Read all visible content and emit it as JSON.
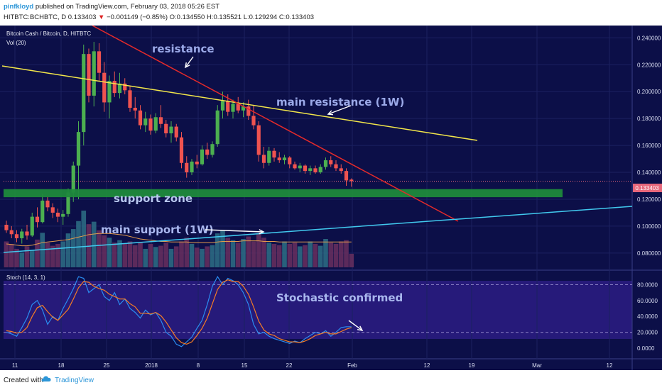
{
  "header": {
    "username": "pinfkloyd",
    "published_text": "published on TradingView.com, February 03, 2018 05:26 EST",
    "symbol": "HITBTC:BCHBTC, D",
    "last": "0.133403",
    "change_arrow": "▼",
    "change": "−0.001149 (−0.85%)",
    "ohlc": "O:0.134550 H:0.135521 L:0.129294 C:0.133403"
  },
  "chart_title": "Bitcoin Cash / Bitcoin, D, HITBTC",
  "volume_label": "Vol (20)",
  "stoch_label": "Stoch (14, 3, 1)",
  "last_price_label": "0.133403",
  "footer": {
    "created_with": "Created with",
    "brand": "TradingView"
  },
  "chart_data": [
    {
      "type": "candlestick",
      "title": "Bitcoin Cash / Bitcoin, D, HITBTC",
      "x_tick_labels": [
        "11",
        "18",
        "25",
        "2018",
        "8",
        "15",
        "22",
        "Feb",
        "12",
        "19",
        "Mar",
        "12"
      ],
      "y_ticks": [
        "0.080000",
        "0.100000",
        "0.120000",
        "0.140000",
        "0.160000",
        "0.180000",
        "0.200000",
        "0.220000",
        "0.240000"
      ],
      "ylim": [
        0.072,
        0.246
      ],
      "candles": [
        {
          "o": 0.101,
          "h": 0.104,
          "l": 0.095,
          "c": 0.097
        },
        {
          "o": 0.097,
          "h": 0.1,
          "l": 0.091,
          "c": 0.094
        },
        {
          "o": 0.094,
          "h": 0.097,
          "l": 0.088,
          "c": 0.091
        },
        {
          "o": 0.091,
          "h": 0.098,
          "l": 0.087,
          "c": 0.096
        },
        {
          "o": 0.096,
          "h": 0.101,
          "l": 0.09,
          "c": 0.093
        },
        {
          "o": 0.093,
          "h": 0.11,
          "l": 0.092,
          "c": 0.107
        },
        {
          "o": 0.107,
          "h": 0.114,
          "l": 0.099,
          "c": 0.103
        },
        {
          "o": 0.103,
          "h": 0.124,
          "l": 0.102,
          "c": 0.119
        },
        {
          "o": 0.119,
          "h": 0.122,
          "l": 0.111,
          "c": 0.114
        },
        {
          "o": 0.114,
          "h": 0.117,
          "l": 0.106,
          "c": 0.11
        },
        {
          "o": 0.11,
          "h": 0.113,
          "l": 0.103,
          "c": 0.107
        },
        {
          "o": 0.107,
          "h": 0.112,
          "l": 0.101,
          "c": 0.109
        },
        {
          "o": 0.109,
          "h": 0.128,
          "l": 0.107,
          "c": 0.125
        },
        {
          "o": 0.125,
          "h": 0.148,
          "l": 0.118,
          "c": 0.145
        },
        {
          "o": 0.145,
          "h": 0.178,
          "l": 0.12,
          "c": 0.17
        },
        {
          "o": 0.17,
          "h": 0.235,
          "l": 0.16,
          "c": 0.228
        },
        {
          "o": 0.228,
          "h": 0.232,
          "l": 0.192,
          "c": 0.197
        },
        {
          "o": 0.197,
          "h": 0.237,
          "l": 0.189,
          "c": 0.23
        },
        {
          "o": 0.23,
          "h": 0.236,
          "l": 0.208,
          "c": 0.214
        },
        {
          "o": 0.214,
          "h": 0.222,
          "l": 0.185,
          "c": 0.192
        },
        {
          "o": 0.192,
          "h": 0.212,
          "l": 0.18,
          "c": 0.208
        },
        {
          "o": 0.208,
          "h": 0.215,
          "l": 0.196,
          "c": 0.199
        },
        {
          "o": 0.199,
          "h": 0.214,
          "l": 0.195,
          "c": 0.206
        },
        {
          "o": 0.206,
          "h": 0.21,
          "l": 0.198,
          "c": 0.201
        },
        {
          "o": 0.201,
          "h": 0.204,
          "l": 0.185,
          "c": 0.188
        },
        {
          "o": 0.188,
          "h": 0.196,
          "l": 0.18,
          "c": 0.186
        },
        {
          "o": 0.186,
          "h": 0.19,
          "l": 0.172,
          "c": 0.175
        },
        {
          "o": 0.175,
          "h": 0.185,
          "l": 0.17,
          "c": 0.18
        },
        {
          "o": 0.18,
          "h": 0.183,
          "l": 0.168,
          "c": 0.171
        },
        {
          "o": 0.171,
          "h": 0.184,
          "l": 0.169,
          "c": 0.181
        },
        {
          "o": 0.181,
          "h": 0.19,
          "l": 0.173,
          "c": 0.176
        },
        {
          "o": 0.176,
          "h": 0.179,
          "l": 0.166,
          "c": 0.169
        },
        {
          "o": 0.169,
          "h": 0.178,
          "l": 0.162,
          "c": 0.174
        },
        {
          "o": 0.174,
          "h": 0.176,
          "l": 0.163,
          "c": 0.166
        },
        {
          "o": 0.166,
          "h": 0.17,
          "l": 0.143,
          "c": 0.147
        },
        {
          "o": 0.147,
          "h": 0.152,
          "l": 0.136,
          "c": 0.14
        },
        {
          "o": 0.14,
          "h": 0.15,
          "l": 0.138,
          "c": 0.148
        },
        {
          "o": 0.148,
          "h": 0.153,
          "l": 0.143,
          "c": 0.146
        },
        {
          "o": 0.146,
          "h": 0.16,
          "l": 0.145,
          "c": 0.157
        },
        {
          "o": 0.157,
          "h": 0.162,
          "l": 0.15,
          "c": 0.153
        },
        {
          "o": 0.153,
          "h": 0.163,
          "l": 0.151,
          "c": 0.161
        },
        {
          "o": 0.161,
          "h": 0.19,
          "l": 0.159,
          "c": 0.186
        },
        {
          "o": 0.186,
          "h": 0.2,
          "l": 0.18,
          "c": 0.193
        },
        {
          "o": 0.193,
          "h": 0.198,
          "l": 0.182,
          "c": 0.185
        },
        {
          "o": 0.185,
          "h": 0.194,
          "l": 0.18,
          "c": 0.191
        },
        {
          "o": 0.191,
          "h": 0.196,
          "l": 0.184,
          "c": 0.186
        },
        {
          "o": 0.186,
          "h": 0.192,
          "l": 0.181,
          "c": 0.189
        },
        {
          "o": 0.189,
          "h": 0.194,
          "l": 0.179,
          "c": 0.182
        },
        {
          "o": 0.182,
          "h": 0.19,
          "l": 0.172,
          "c": 0.175
        },
        {
          "o": 0.175,
          "h": 0.178,
          "l": 0.148,
          "c": 0.153
        },
        {
          "o": 0.153,
          "h": 0.159,
          "l": 0.143,
          "c": 0.147
        },
        {
          "o": 0.147,
          "h": 0.159,
          "l": 0.145,
          "c": 0.156
        },
        {
          "o": 0.156,
          "h": 0.158,
          "l": 0.148,
          "c": 0.151
        },
        {
          "o": 0.151,
          "h": 0.155,
          "l": 0.147,
          "c": 0.149
        },
        {
          "o": 0.149,
          "h": 0.153,
          "l": 0.146,
          "c": 0.151
        },
        {
          "o": 0.151,
          "h": 0.152,
          "l": 0.143,
          "c": 0.146
        },
        {
          "o": 0.146,
          "h": 0.148,
          "l": 0.142,
          "c": 0.143
        },
        {
          "o": 0.143,
          "h": 0.147,
          "l": 0.14,
          "c": 0.145
        },
        {
          "o": 0.145,
          "h": 0.146,
          "l": 0.139,
          "c": 0.141
        },
        {
          "o": 0.141,
          "h": 0.145,
          "l": 0.138,
          "c": 0.143
        },
        {
          "o": 0.143,
          "h": 0.145,
          "l": 0.139,
          "c": 0.14
        },
        {
          "o": 0.14,
          "h": 0.146,
          "l": 0.139,
          "c": 0.144
        },
        {
          "o": 0.144,
          "h": 0.151,
          "l": 0.142,
          "c": 0.149
        },
        {
          "o": 0.149,
          "h": 0.152,
          "l": 0.144,
          "c": 0.146
        },
        {
          "o": 0.146,
          "h": 0.149,
          "l": 0.141,
          "c": 0.143
        },
        {
          "o": 0.143,
          "h": 0.146,
          "l": 0.139,
          "c": 0.141
        },
        {
          "o": 0.141,
          "h": 0.143,
          "l": 0.13,
          "c": 0.134
        },
        {
          "o": 0.1346,
          "h": 0.1355,
          "l": 0.1293,
          "c": 0.1334
        }
      ],
      "volumes": [
        42,
        38,
        30,
        24,
        34,
        28,
        45,
        56,
        40,
        35,
        38,
        42,
        55,
        62,
        75,
        92,
        70,
        74,
        60,
        52,
        48,
        40,
        44,
        38,
        42,
        36,
        40,
        30,
        38,
        33,
        35,
        40,
        30,
        34,
        42,
        48,
        38,
        32,
        30,
        34,
        36,
        55,
        60,
        48,
        44,
        40,
        46,
        50,
        42,
        55,
        48,
        40,
        38,
        36,
        42,
        38,
        40,
        34,
        36,
        42,
        38,
        35,
        46,
        40,
        38,
        42,
        44,
        22
      ],
      "volume_ma": [
        38,
        37,
        36,
        35,
        35,
        36,
        38,
        40,
        41,
        42,
        43,
        44,
        45,
        47,
        49,
        51,
        53,
        54,
        55,
        55,
        55,
        54,
        53,
        52,
        50,
        48,
        46,
        45,
        44,
        43,
        42,
        42,
        41,
        41,
        41,
        41,
        40,
        40,
        40,
        40,
        40,
        41,
        42,
        42,
        42,
        42,
        43,
        43,
        43,
        43,
        42,
        42,
        42,
        41,
        41,
        41,
        41,
        41,
        41,
        41,
        41,
        41,
        41,
        41,
        41,
        41,
        41,
        41
      ],
      "annotations": [
        "resistance",
        "main resistance (1W)",
        "support zone",
        "main support (1W)"
      ],
      "support_zone": [
        0.1215,
        0.1275
      ]
    },
    {
      "type": "line",
      "title": "Stoch (14, 3, 1)",
      "ylim": [
        -8,
        92
      ],
      "y_ticks": [
        "0.0000",
        "20.0000",
        "40.0000",
        "60.0000",
        "80.0000"
      ],
      "bands": [
        20,
        80
      ],
      "series": [
        {
          "values": [
            20,
            18,
            15,
            26,
            38,
            55,
            60,
            48,
            30,
            40,
            35,
            50,
            62,
            75,
            90,
            88,
            70,
            75,
            80,
            65,
            60,
            70,
            55,
            62,
            50,
            45,
            38,
            48,
            42,
            45,
            35,
            20,
            15,
            5,
            2,
            8,
            14,
            25,
            35,
            55,
            78,
            90,
            80,
            88,
            85,
            80,
            70,
            55,
            30,
            18,
            20,
            15,
            12,
            10,
            8,
            6,
            9,
            7,
            12,
            16,
            20,
            18,
            22,
            15,
            20,
            26,
            27,
            27
          ],
          "color": "#2a8cf0"
        },
        {
          "values": [
            22,
            21,
            19,
            20,
            26,
            40,
            51,
            54,
            46,
            39,
            35,
            42,
            49,
            62,
            76,
            84,
            83,
            78,
            75,
            73,
            68,
            65,
            62,
            62,
            56,
            52,
            44,
            44,
            43,
            45,
            41,
            33,
            23,
            13,
            7,
            5,
            8,
            16,
            25,
            38,
            56,
            74,
            83,
            86,
            84,
            84,
            78,
            68,
            52,
            34,
            23,
            18,
            16,
            12,
            10,
            8,
            8,
            7,
            9,
            12,
            16,
            18,
            20,
            18,
            18,
            21,
            24,
            26
          ],
          "color": "#f57c24"
        }
      ],
      "annotations": [
        "Stochastic confirmed"
      ]
    }
  ]
}
